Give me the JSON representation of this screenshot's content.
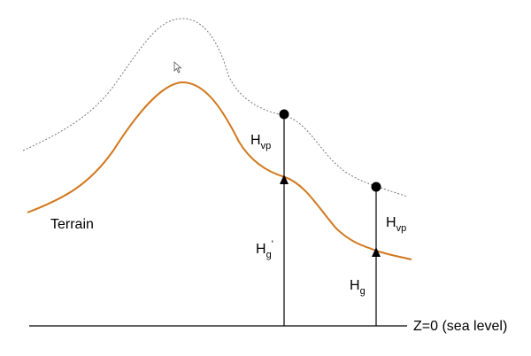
{
  "labels": {
    "terrain": "Terrain",
    "sea_level": "Z=0 (sea level)",
    "h_vp_left": {
      "main": "H",
      "sub": "vp"
    },
    "h_g_prime": {
      "main": "H",
      "sub": "g",
      "sup": "'"
    },
    "h_vp_right": {
      "main": "H",
      "sub": "vp"
    },
    "h_g": {
      "main": "H",
      "sub": "g"
    }
  },
  "colors": {
    "terrain_curve": "#D2781E",
    "upper_surface": "#777777",
    "lines": "#000000",
    "background": "#ffffff"
  },
  "icons": {
    "cursor": "mouse-pointer-icon"
  }
}
